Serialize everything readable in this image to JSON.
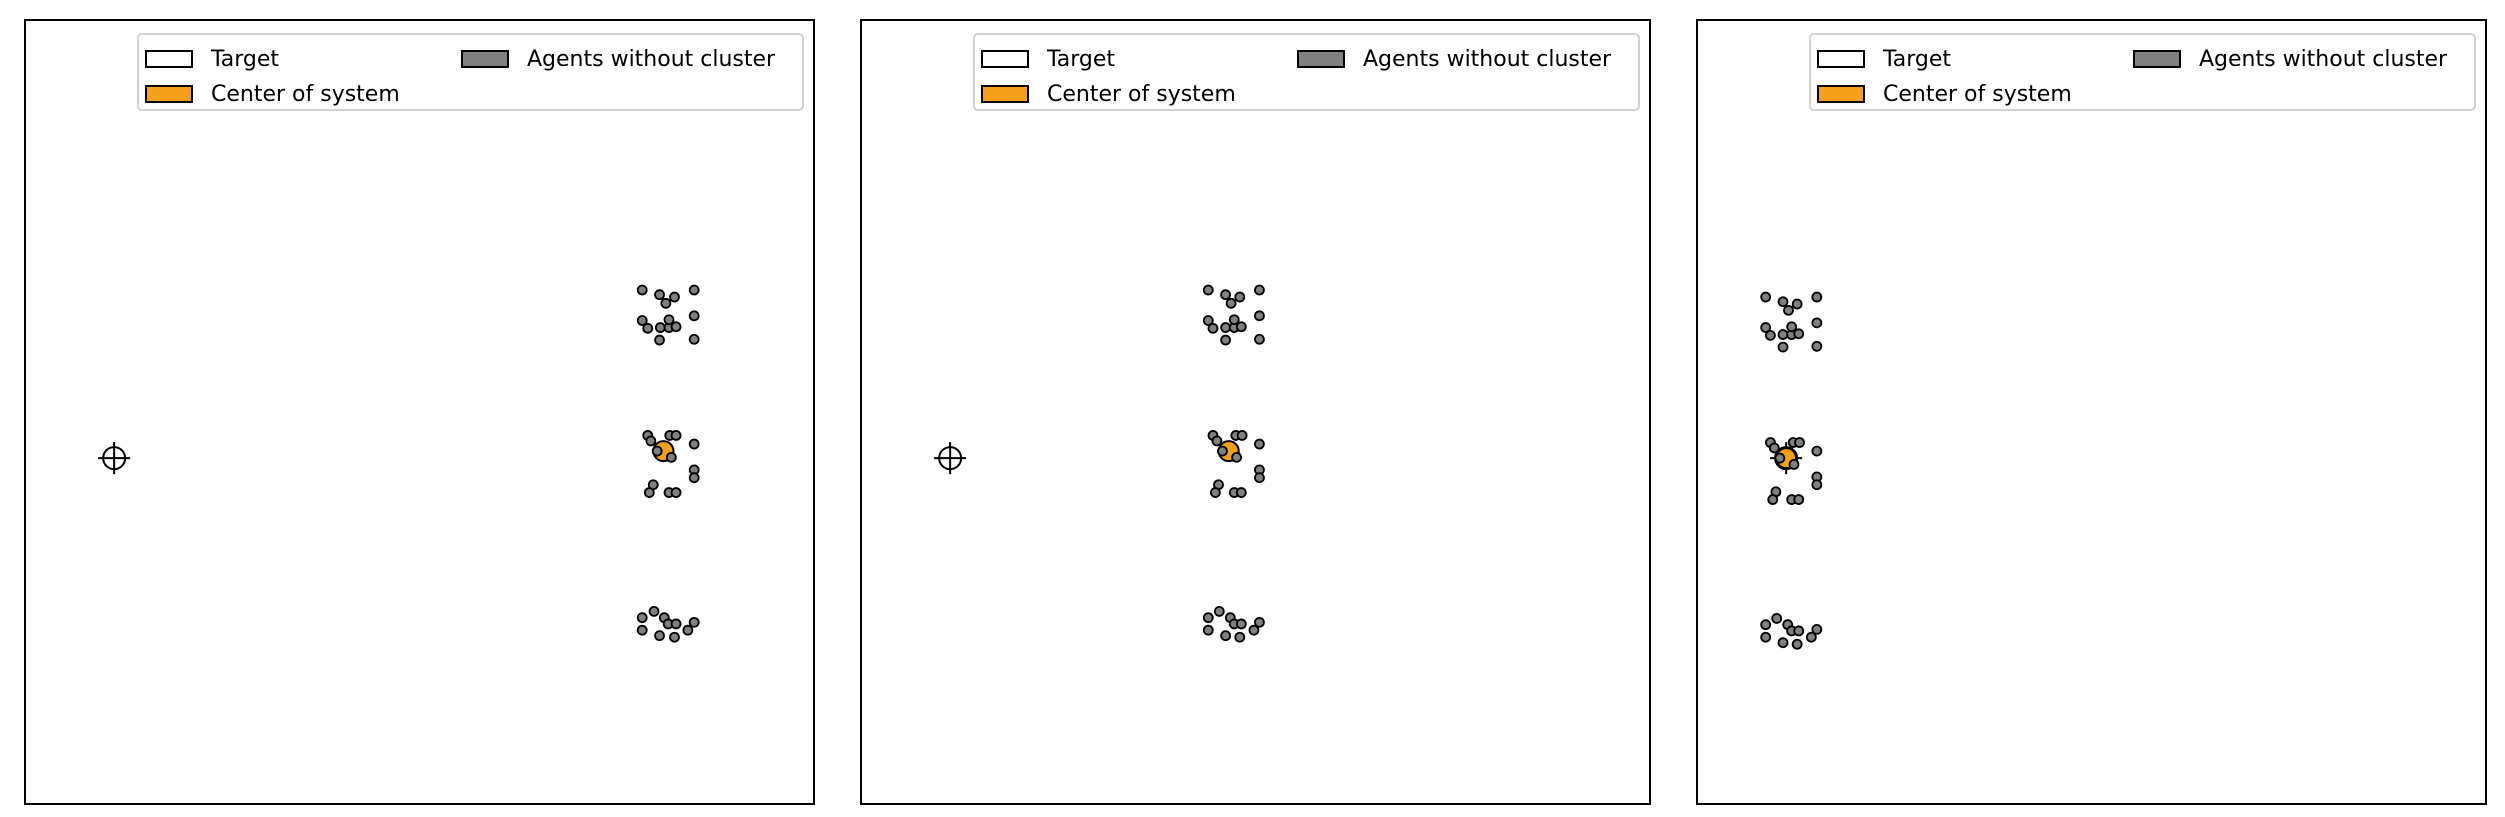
{
  "legend": {
    "target_label": "Target",
    "center_label": "Center of system",
    "agents_label": "Agents without cluster"
  },
  "colors": {
    "target": "#ffffff",
    "center": "#f5a01a",
    "agents": "#808080",
    "edge": "#000000"
  },
  "chart_data": [
    {
      "type": "scatter",
      "panel": 1,
      "xlim": [
        0,
        100
      ],
      "ylim": [
        0,
        100
      ],
      "target": {
        "x": 11.2,
        "y": 44.1
      },
      "center": {
        "x": 81.0,
        "y": 45.0
      },
      "series": [
        {
          "name": "Agents without cluster",
          "points": [
            [
              78.3,
              65.6
            ],
            [
              84.9,
              65.6
            ],
            [
              80.5,
              65.0
            ],
            [
              82.4,
              64.7
            ],
            [
              81.3,
              63.9
            ],
            [
              84.9,
              62.3
            ],
            [
              78.3,
              61.7
            ],
            [
              79.0,
              60.7
            ],
            [
              80.6,
              60.8
            ],
            [
              81.7,
              60.8
            ],
            [
              82.6,
              60.9
            ],
            [
              81.7,
              61.8
            ],
            [
              84.9,
              59.3
            ],
            [
              80.5,
              59.2
            ],
            [
              79.0,
              47.0
            ],
            [
              81.8,
              47.0
            ],
            [
              82.6,
              47.0
            ],
            [
              84.9,
              45.9
            ],
            [
              79.4,
              46.3
            ],
            [
              80.2,
              45.0
            ],
            [
              82.0,
              44.2
            ],
            [
              84.9,
              42.6
            ],
            [
              84.9,
              41.6
            ],
            [
              79.7,
              40.7
            ],
            [
              79.2,
              39.7
            ],
            [
              81.7,
              39.7
            ],
            [
              82.6,
              39.7
            ],
            [
              78.3,
              23.7
            ],
            [
              79.8,
              24.5
            ],
            [
              81.1,
              23.7
            ],
            [
              81.6,
              22.9
            ],
            [
              82.6,
              22.9
            ],
            [
              84.9,
              23.1
            ],
            [
              78.3,
              22.1
            ],
            [
              84.1,
              22.1
            ],
            [
              80.5,
              21.4
            ],
            [
              82.4,
              21.2
            ]
          ]
        }
      ]
    },
    {
      "type": "scatter",
      "panel": 2,
      "xlim": [
        0,
        100
      ],
      "ylim": [
        0,
        100
      ],
      "target": {
        "x": 11.2,
        "y": 44.1
      },
      "center": {
        "x": 46.6,
        "y": 45.0
      },
      "series": [
        {
          "name": "Agents without cluster",
          "points": [
            [
              44.0,
              65.6
            ],
            [
              50.5,
              65.6
            ],
            [
              46.2,
              65.0
            ],
            [
              48.0,
              64.7
            ],
            [
              46.9,
              63.9
            ],
            [
              50.5,
              62.3
            ],
            [
              44.0,
              61.7
            ],
            [
              44.6,
              60.7
            ],
            [
              46.2,
              60.8
            ],
            [
              47.3,
              60.8
            ],
            [
              48.2,
              60.9
            ],
            [
              47.3,
              61.8
            ],
            [
              50.5,
              59.3
            ],
            [
              46.2,
              59.2
            ],
            [
              44.6,
              47.0
            ],
            [
              47.5,
              47.0
            ],
            [
              48.3,
              47.0
            ],
            [
              50.5,
              45.9
            ],
            [
              45.1,
              46.3
            ],
            [
              45.8,
              45.0
            ],
            [
              47.6,
              44.2
            ],
            [
              50.5,
              42.6
            ],
            [
              50.5,
              41.6
            ],
            [
              45.3,
              40.7
            ],
            [
              44.9,
              39.7
            ],
            [
              47.3,
              39.7
            ],
            [
              48.2,
              39.7
            ],
            [
              44.0,
              23.7
            ],
            [
              45.4,
              24.5
            ],
            [
              46.8,
              23.7
            ],
            [
              47.3,
              22.9
            ],
            [
              48.2,
              22.9
            ],
            [
              50.5,
              23.1
            ],
            [
              44.0,
              22.1
            ],
            [
              49.8,
              22.1
            ],
            [
              46.2,
              21.4
            ],
            [
              48.0,
              21.2
            ]
          ]
        }
      ]
    },
    {
      "type": "scatter",
      "panel": 3,
      "xlim": [
        0,
        100
      ],
      "ylim": [
        0,
        100
      ],
      "target": {
        "x": 11.2,
        "y": 44.1
      },
      "center": {
        "x": 11.2,
        "y": 44.1
      },
      "series": [
        {
          "name": "Agents without cluster",
          "points": [
            [
              8.6,
              64.7
            ],
            [
              15.1,
              64.7
            ],
            [
              10.8,
              64.1
            ],
            [
              12.6,
              63.8
            ],
            [
              11.5,
              63.0
            ],
            [
              15.1,
              61.4
            ],
            [
              8.6,
              60.8
            ],
            [
              9.2,
              59.8
            ],
            [
              10.8,
              59.9
            ],
            [
              11.9,
              59.9
            ],
            [
              12.8,
              60.0
            ],
            [
              11.9,
              60.9
            ],
            [
              15.1,
              58.4
            ],
            [
              10.8,
              58.3
            ],
            [
              9.2,
              46.1
            ],
            [
              12.1,
              46.1
            ],
            [
              12.9,
              46.1
            ],
            [
              15.1,
              45.0
            ],
            [
              9.7,
              45.4
            ],
            [
              10.4,
              44.1
            ],
            [
              12.2,
              43.3
            ],
            [
              15.1,
              41.7
            ],
            [
              15.1,
              40.7
            ],
            [
              9.9,
              39.8
            ],
            [
              9.5,
              38.8
            ],
            [
              11.9,
              38.8
            ],
            [
              12.8,
              38.8
            ],
            [
              8.6,
              22.8
            ],
            [
              10.0,
              23.6
            ],
            [
              11.4,
              22.8
            ],
            [
              11.9,
              22.0
            ],
            [
              12.8,
              22.0
            ],
            [
              15.1,
              22.2
            ],
            [
              8.6,
              21.2
            ],
            [
              14.4,
              21.2
            ],
            [
              10.8,
              20.5
            ],
            [
              12.6,
              20.3
            ]
          ]
        }
      ]
    }
  ]
}
